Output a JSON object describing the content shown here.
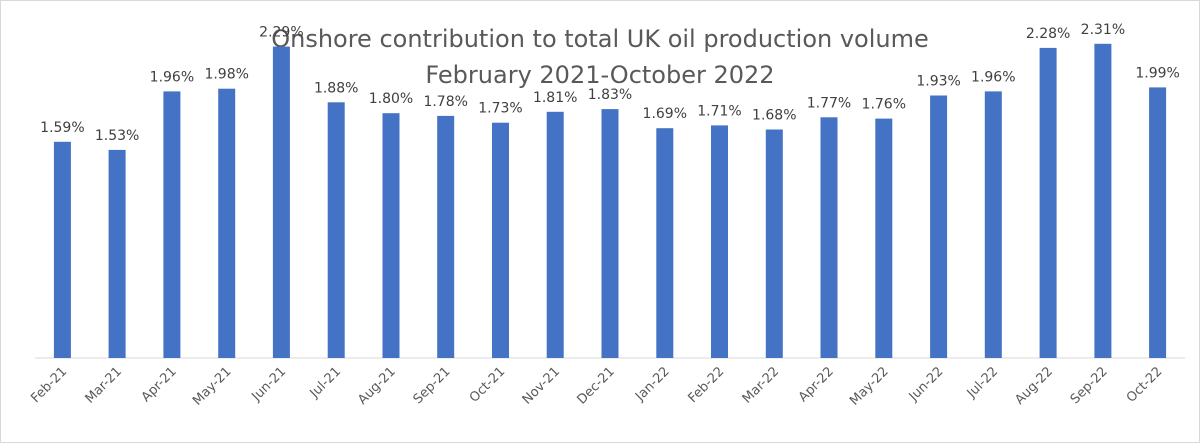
{
  "chart_data": {
    "type": "bar",
    "title": "Onshore contribution to total UK oil production volume",
    "subtitle": "February 2021-October 2022",
    "xlabel": "",
    "ylabel": "",
    "categories": [
      "Feb-21",
      "Mar-21",
      "Apr-21",
      "May-21",
      "Jun-21",
      "Jul-21",
      "Aug-21",
      "Sep-21",
      "Oct-21",
      "Nov-21",
      "Dec-21",
      "Jan-22",
      "Feb-22",
      "Mar-22",
      "Apr-22",
      "May-22",
      "Jun-22",
      "Jul-22",
      "Aug-22",
      "Sep-22",
      "Oct-22"
    ],
    "values": [
      1.59,
      1.53,
      1.96,
      1.98,
      2.29,
      1.88,
      1.8,
      1.78,
      1.73,
      1.81,
      1.83,
      1.69,
      1.71,
      1.68,
      1.77,
      1.76,
      1.93,
      1.96,
      2.28,
      2.31,
      1.99
    ],
    "data_labels": [
      "1.59%",
      "1.53%",
      "1.96%",
      "1.98%",
      "2.29%",
      "1.88%",
      "1.80%",
      "1.78%",
      "1.73%",
      "1.81%",
      "1.83%",
      "1.69%",
      "1.71%",
      "1.68%",
      "1.77%",
      "1.76%",
      "1.93%",
      "1.96%",
      "2.28%",
      "2.31%",
      "1.99%"
    ],
    "ylim": [
      0,
      2.5
    ],
    "grid": false,
    "legend": "none",
    "bar_color": "#4472C4"
  }
}
